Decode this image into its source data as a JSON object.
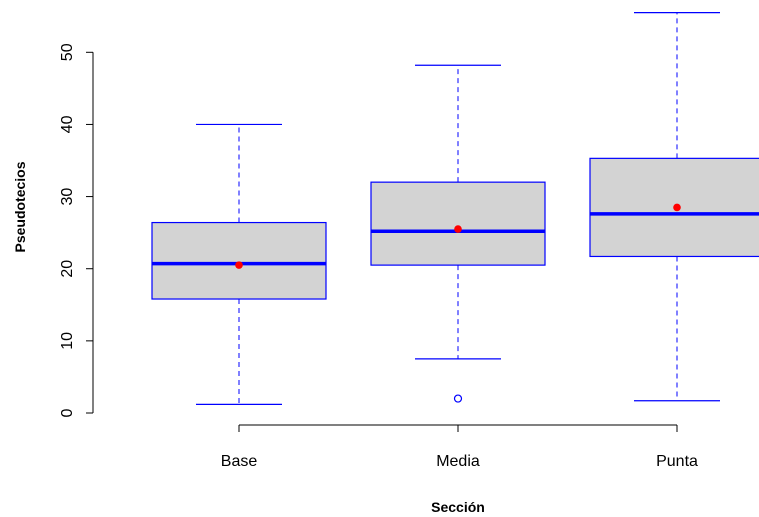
{
  "chart_data": {
    "type": "boxplot",
    "xlabel": "Sección",
    "ylabel": "Pseudotecios",
    "categories": [
      "Base",
      "Media",
      "Punta"
    ],
    "y_ticks": [
      "0",
      "10",
      "20",
      "30",
      "40",
      "50"
    ],
    "ylim": [
      0,
      55
    ],
    "boxes": [
      {
        "name": "Base",
        "min": 1.2,
        "q1": 15.8,
        "median": 20.7,
        "q3": 26.4,
        "max": 40.0,
        "mean": 20.5,
        "outliers": []
      },
      {
        "name": "Media",
        "min": 7.5,
        "q1": 20.5,
        "median": 25.2,
        "q3": 32.0,
        "max": 48.2,
        "mean": 25.5,
        "outliers": [
          2.0
        ]
      },
      {
        "name": "Punta",
        "min": 1.7,
        "q1": 21.7,
        "median": 27.6,
        "q3": 35.3,
        "max": 55.5,
        "mean": 28.5,
        "outliers": []
      }
    ],
    "grid": false,
    "colors": {
      "box_fill": "#d3d3d3",
      "box_border": "#0000ff",
      "median": "#0000ff",
      "whisker": "#0000ff",
      "mean_point": "#ff0000",
      "outlier": "#0000ff",
      "axis": "#000000"
    }
  }
}
